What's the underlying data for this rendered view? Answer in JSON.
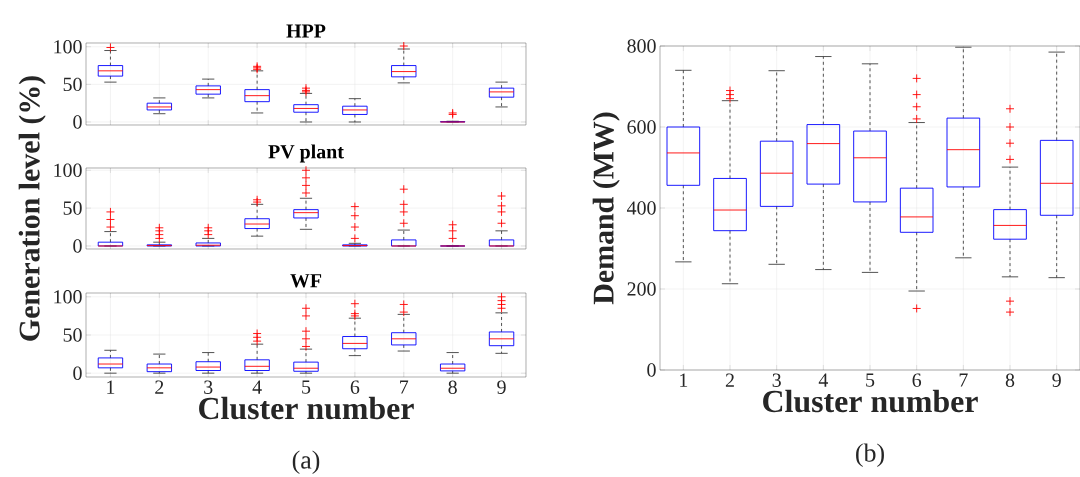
{
  "chart_data": [
    {
      "type": "box",
      "title": "HPP",
      "categories": [
        "1",
        "2",
        "3",
        "4",
        "5",
        "6",
        "7",
        "8",
        "9"
      ],
      "color": "#0000ff",
      "ylim": [
        -4,
        105
      ],
      "yticks": [
        0,
        50,
        100
      ],
      "grid": true,
      "tick_labels": "y",
      "marker": "cross",
      "boxes": [
        {
          "low": 53,
          "q1": 61,
          "median": 68,
          "q3": 75,
          "high": 95,
          "outliers": [
            99
          ]
        },
        {
          "low": 11,
          "q1": 16,
          "median": 20,
          "q3": 25,
          "high": 32
        },
        {
          "low": 32,
          "q1": 37,
          "median": 43,
          "q3": 48,
          "high": 57
        },
        {
          "low": 12,
          "q1": 27,
          "median": 35,
          "q3": 43,
          "high": 68,
          "outliers": [
            70,
            72,
            74
          ]
        },
        {
          "low": 0,
          "q1": 13,
          "median": 18,
          "q3": 23,
          "high": 38,
          "outliers": [
            40,
            42,
            45
          ]
        },
        {
          "low": 0,
          "q1": 10,
          "median": 16,
          "q3": 21,
          "high": 31
        },
        {
          "low": 52,
          "q1": 60,
          "median": 67,
          "q3": 75,
          "high": 97,
          "outliers": [
            101
          ]
        },
        {
          "low": 0,
          "q1": 0,
          "median": 0,
          "q3": 0.5,
          "high": 1,
          "outliers": [
            10,
            12
          ]
        },
        {
          "low": 20,
          "q1": 33,
          "median": 40,
          "q3": 45,
          "high": 53
        }
      ]
    },
    {
      "type": "box",
      "title": "PV plant",
      "ylabel": "Generation level (%)",
      "categories": [
        "1",
        "2",
        "3",
        "4",
        "5",
        "6",
        "7",
        "8",
        "9"
      ],
      "color": "#0000ff",
      "ylim": [
        -4,
        103
      ],
      "yticks": [
        0,
        50,
        100
      ],
      "grid": true,
      "tick_labels": "y",
      "marker": "cross",
      "boxes": [
        {
          "low": 0,
          "q1": 0,
          "median": 0,
          "q3": 5,
          "high": 19,
          "outliers": [
            25,
            35,
            45
          ]
        },
        {
          "low": 0,
          "q1": 0,
          "median": 0.5,
          "q3": 1.5,
          "high": 5,
          "outliers": [
            10,
            15,
            20,
            24
          ]
        },
        {
          "low": 0,
          "q1": 0,
          "median": 1,
          "q3": 4,
          "high": 10,
          "outliers": [
            15,
            20,
            24
          ]
        },
        {
          "low": 13,
          "q1": 23,
          "median": 29,
          "q3": 36,
          "high": 55,
          "outliers": [
            58,
            61
          ]
        },
        {
          "low": 22,
          "q1": 37,
          "median": 44,
          "q3": 48,
          "high": 63,
          "outliers": [
            70,
            80,
            90,
            100
          ]
        },
        {
          "low": 0,
          "q1": 0,
          "median": 0.5,
          "q3": 1.5,
          "high": 3.5,
          "outliers": [
            10,
            25,
            40,
            52
          ]
        },
        {
          "low": 0,
          "q1": 0,
          "median": 0,
          "q3": 8,
          "high": 21,
          "outliers": [
            30,
            45,
            55,
            75
          ]
        },
        {
          "low": 0,
          "q1": 0,
          "median": 0,
          "q3": 0,
          "high": 0,
          "outliers": [
            10,
            20,
            28
          ]
        },
        {
          "low": 0,
          "q1": 0,
          "median": 0,
          "q3": 8,
          "high": 20,
          "outliers": [
            30,
            45,
            53,
            66
          ]
        }
      ]
    },
    {
      "type": "box",
      "title": "WF",
      "xlabel": "Cluster number",
      "annotations": [
        "(a)"
      ],
      "categories": [
        "1",
        "2",
        "3",
        "4",
        "5",
        "6",
        "7",
        "8",
        "9"
      ],
      "color": "#0000ff",
      "ylim": [
        -5,
        105
      ],
      "yticks": [
        0,
        50,
        100
      ],
      "grid": true,
      "marker": "cross",
      "boxes": [
        {
          "low": 0,
          "q1": 7,
          "median": 12,
          "q3": 20,
          "high": 30
        },
        {
          "low": 0,
          "q1": 2,
          "median": 7,
          "q3": 12,
          "high": 25
        },
        {
          "low": 0,
          "q1": 3.5,
          "median": 8,
          "q3": 15,
          "high": 27
        },
        {
          "low": 0,
          "q1": 3.5,
          "median": 9,
          "q3": 17.5,
          "high": 38,
          "outliers": [
            42,
            47,
            52
          ]
        },
        {
          "low": 0,
          "q1": 2.5,
          "median": 6.5,
          "q3": 14.5,
          "high": 31.5,
          "outliers": [
            35,
            45,
            55,
            75,
            85
          ]
        },
        {
          "low": 23,
          "q1": 32,
          "median": 39,
          "q3": 48,
          "high": 72,
          "outliers": [
            75,
            78,
            91
          ]
        },
        {
          "low": 29,
          "q1": 37,
          "median": 45,
          "q3": 53,
          "high": 77,
          "outliers": [
            80,
            90
          ]
        },
        {
          "low": 0,
          "q1": 3,
          "median": 6.5,
          "q3": 12,
          "high": 27
        },
        {
          "low": 26,
          "q1": 36,
          "median": 45,
          "q3": 54,
          "high": 79,
          "outliers": [
            85,
            90,
            95,
            100
          ]
        }
      ]
    },
    {
      "type": "box",
      "ylabel": "Demand (MW)",
      "xlabel": "Cluster number",
      "annotations": [
        "(b)"
      ],
      "categories": [
        "1",
        "2",
        "3",
        "4",
        "5",
        "6",
        "7",
        "8",
        "9"
      ],
      "color": "#0000ff",
      "ylim": [
        0,
        800
      ],
      "yticks": [
        0,
        200,
        400,
        600,
        800
      ],
      "grid": true,
      "marker": "cross",
      "boxes": [
        {
          "low": 267,
          "q1": 456,
          "median": 536,
          "q3": 600,
          "high": 740
        },
        {
          "low": 213,
          "q1": 344,
          "median": 395,
          "q3": 473,
          "high": 665,
          "outliers": [
            670,
            680,
            690
          ]
        },
        {
          "low": 261,
          "q1": 404,
          "median": 486,
          "q3": 565,
          "high": 739
        },
        {
          "low": 248,
          "q1": 459,
          "median": 559,
          "q3": 606,
          "high": 774
        },
        {
          "low": 241,
          "q1": 415,
          "median": 524,
          "q3": 590,
          "high": 756
        },
        {
          "low": 195,
          "q1": 340,
          "median": 378,
          "q3": 449,
          "high": 611,
          "outliers": [
            152,
            620,
            650,
            680,
            720
          ]
        },
        {
          "low": 277,
          "q1": 452,
          "median": 544,
          "q3": 622,
          "high": 797
        },
        {
          "low": 230,
          "q1": 323,
          "median": 357,
          "q3": 396,
          "high": 501,
          "outliers": [
            143,
            170,
            520,
            560,
            600,
            645
          ]
        },
        {
          "low": 228,
          "q1": 382,
          "median": 461,
          "q3": 567,
          "high": 785
        }
      ]
    }
  ]
}
